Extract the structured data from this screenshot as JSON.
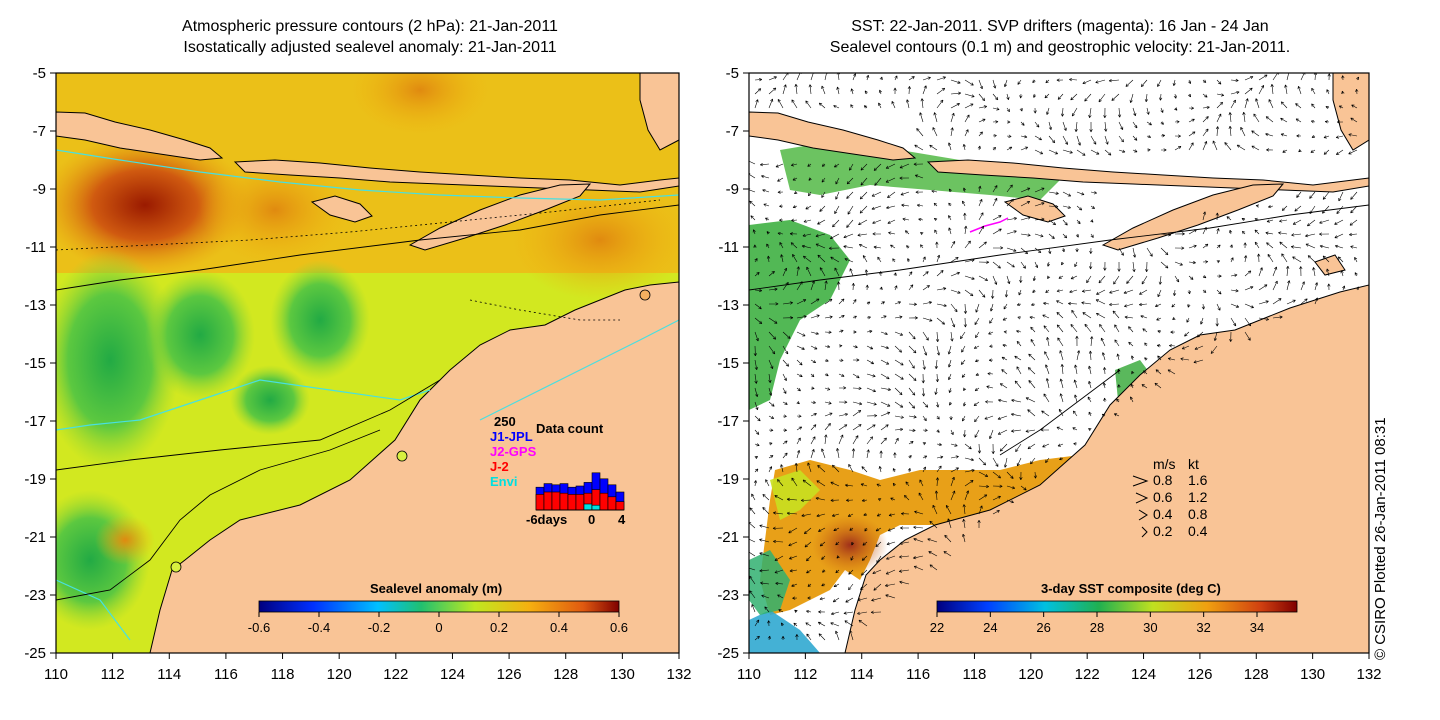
{
  "left_panel": {
    "title_line1": "Atmospheric pressure contours (2 hPa): 21-Jan-2011",
    "title_line2": "Isostatically adjusted sealevel anomaly: 21-Jan-2011",
    "x_ticks": [
      "110",
      "112",
      "114",
      "116",
      "118",
      "120",
      "122",
      "124",
      "126",
      "128",
      "130",
      "132"
    ],
    "y_ticks": [
      "-5",
      "-7",
      "-9",
      "-11",
      "-13",
      "-15",
      "-17",
      "-19",
      "-21",
      "-23",
      "-25"
    ],
    "colorbar": {
      "label": "Sealevel anomaly (m)",
      "ticks": [
        "-0.6",
        "-0.4",
        "-0.2",
        "0",
        "0.2",
        "0.4",
        "0.6"
      ],
      "range": [
        -0.6,
        0.6
      ]
    },
    "data_count": {
      "title": "Data count",
      "max_label": "250",
      "missions": [
        {
          "name": "J1-JPL",
          "color": "#0000ff"
        },
        {
          "name": "J2-GPS",
          "color": "#ff00ff"
        },
        {
          "name": "J-2",
          "color": "#ff0000"
        },
        {
          "name": "Envi",
          "color": "#00e0e0"
        }
      ],
      "axis_labels": [
        "-6days",
        "0",
        "4"
      ],
      "bars_blue": [
        95,
        110,
        105,
        110,
        95,
        100,
        115,
        155,
        130,
        105,
        75
      ],
      "bars_red": [
        65,
        75,
        75,
        70,
        65,
        65,
        70,
        85,
        70,
        55,
        35
      ],
      "bars_cyan": [
        0,
        0,
        0,
        0,
        0,
        0,
        25,
        20,
        0,
        0,
        0
      ]
    }
  },
  "right_panel": {
    "title_line1": "SST: 22-Jan-2011. SVP drifters (magenta): 16 Jan - 24 Jan",
    "title_line2": "Sealevel contours (0.1 m) and geostrophic velocity: 21-Jan-2011.",
    "x_ticks": [
      "110",
      "112",
      "114",
      "116",
      "118",
      "120",
      "122",
      "124",
      "126",
      "128",
      "130",
      "132"
    ],
    "y_ticks": [
      "-5",
      "-7",
      "-9",
      "-11",
      "-13",
      "-15",
      "-17",
      "-19",
      "-21",
      "-23",
      "-25"
    ],
    "colorbar": {
      "label": "3-day SST composite (deg C)",
      "ticks": [
        "22",
        "24",
        "26",
        "28",
        "30",
        "32",
        "34"
      ],
      "range": [
        22,
        35.5
      ]
    },
    "velocity_legend": {
      "header_ms": "m/s",
      "header_kt": "kt",
      "rows": [
        {
          "ms": "0.8",
          "kt": "1.6"
        },
        {
          "ms": "0.6",
          "kt": "1.2"
        },
        {
          "ms": "0.4",
          "kt": "0.8"
        },
        {
          "ms": "0.2",
          "kt": "0.4"
        }
      ]
    }
  },
  "credit": "© CSIRO Plotted 26-Jan-2011 08:31",
  "colors": {
    "land": "#f9c496",
    "sea_base": "#c8ea1e",
    "bathymetry": "#48e0e0",
    "drifter": "#ff00ff"
  }
}
